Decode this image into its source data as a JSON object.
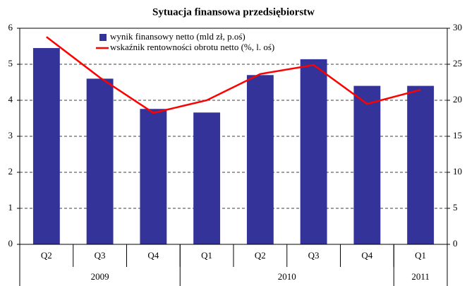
{
  "chart_data": {
    "type": "bar-line",
    "title": "Sytuacja finansowa przedsiębiorstw",
    "categories": [
      "Q2",
      "Q3",
      "Q4",
      "Q1",
      "Q2",
      "Q3",
      "Q4",
      "Q1"
    ],
    "years": [
      "2009",
      null,
      null,
      "2010",
      null,
      null,
      null,
      "2011"
    ],
    "series": [
      {
        "name": "wynik finansowy netto (mld zł, p.oś)",
        "type": "bar",
        "axis": "y2",
        "color": "#333399",
        "values": [
          27.25,
          23,
          18.8,
          18.3,
          23.5,
          25.7,
          22,
          22
        ]
      },
      {
        "name": "wskaźnik rentowności obrotu netto (%, l. oś)",
        "type": "line",
        "axis": "y",
        "color": "#ff0000",
        "values": [
          5.76,
          4.63,
          3.65,
          4.0,
          4.73,
          4.98,
          3.9,
          4.29
        ]
      }
    ],
    "ylim": [
      0,
      6
    ],
    "yticks": [
      0,
      1,
      2,
      3,
      4,
      5,
      6
    ],
    "y2lim": [
      0,
      30
    ],
    "y2ticks": [
      0,
      5,
      10,
      15,
      20,
      25,
      30
    ],
    "grid": true
  }
}
